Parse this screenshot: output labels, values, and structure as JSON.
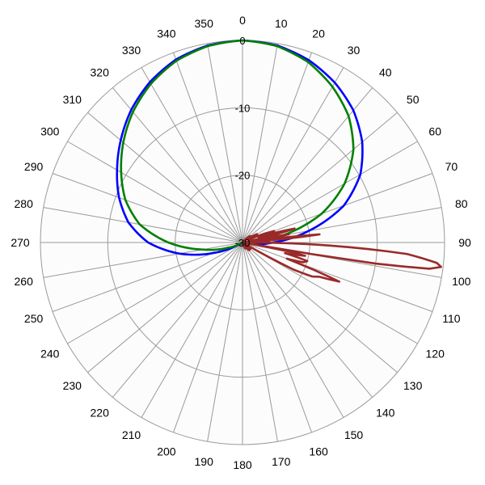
{
  "chart_data": {
    "type": "polar-line",
    "title": "",
    "angle_unit": "degrees",
    "angle_zero": "top",
    "angle_direction": "clockwise",
    "angle_ticks": [
      0,
      10,
      20,
      30,
      40,
      50,
      60,
      70,
      80,
      90,
      100,
      110,
      120,
      130,
      140,
      150,
      160,
      170,
      180,
      190,
      200,
      210,
      220,
      230,
      240,
      250,
      260,
      270,
      280,
      290,
      300,
      310,
      320,
      330,
      340,
      350
    ],
    "angle_tick_labels": [
      "0",
      "10",
      "20",
      "30",
      "40",
      "50",
      "60",
      "70",
      "80",
      "90",
      "100",
      "110",
      "120",
      "130",
      "140",
      "150",
      "160",
      "170",
      "180",
      "190",
      "200",
      "210",
      "220",
      "230",
      "240",
      "250",
      "260",
      "270",
      "280",
      "290",
      "300",
      "310",
      "320",
      "330",
      "340",
      "350"
    ],
    "radial_range": [
      -30,
      0
    ],
    "radial_ticks": [
      0,
      -10,
      -20,
      -30
    ],
    "radial_tick_labels": [
      "0",
      "-10",
      "-20",
      "-30"
    ],
    "grid": true,
    "colors": {
      "grid": "#9a9a9a",
      "background": "#fcfcfc"
    },
    "series": [
      {
        "color": "#0000ff",
        "angles": [
          0,
          10,
          20,
          30,
          40,
          50,
          60,
          70,
          80,
          90,
          100,
          110,
          120,
          150,
          180,
          210,
          240,
          250,
          260,
          270,
          280,
          290,
          300,
          310,
          320,
          330,
          340,
          350,
          360
        ],
        "values": [
          0,
          -0.3,
          -1.2,
          -2.6,
          -4.4,
          -6.8,
          -9.8,
          -14,
          -20,
          -25.5,
          -28.8,
          -29.6,
          -30,
          -30,
          -30,
          -30,
          -29.5,
          -25.5,
          -20.5,
          -16,
          -12.8,
          -10.5,
          -8.5,
          -6.4,
          -4.3,
          -2.5,
          -1.1,
          -0.3,
          0
        ]
      },
      {
        "color": "#008000",
        "angles": [
          0,
          10,
          20,
          30,
          40,
          50,
          60,
          70,
          80,
          90,
          100,
          110,
          120,
          150,
          180,
          210,
          240,
          250,
          260,
          270,
          280,
          290,
          300,
          310,
          320,
          330,
          340,
          350,
          360
        ],
        "values": [
          0,
          -0.4,
          -1.5,
          -3.3,
          -5.5,
          -8.5,
          -12.5,
          -17.5,
          -24,
          -28.3,
          -29.5,
          -30,
          -30,
          -30,
          -30,
          -30,
          -29.7,
          -27.8,
          -24,
          -19,
          -14.5,
          -11.5,
          -9.2,
          -6.9,
          -4.7,
          -2.8,
          -1.3,
          -0.4,
          0
        ]
      },
      {
        "color": "#9a2a2a",
        "angles": [
          0,
          30,
          40,
          45,
          50,
          55,
          60,
          65,
          70,
          72,
          75,
          78,
          80,
          82,
          84,
          86,
          88,
          90,
          92,
          94,
          96,
          97,
          98,
          99,
          100,
          101,
          102,
          104,
          106,
          108,
          110,
          112,
          114,
          116,
          118,
          120,
          130,
          135,
          140,
          145,
          150,
          155,
          160,
          170,
          180,
          270,
          280,
          300,
          330,
          360
        ],
        "values": [
          -30,
          -30,
          -29.7,
          -29,
          -28.5,
          -29,
          -27.5,
          -29,
          -25,
          -27.5,
          -22,
          -29,
          -23,
          -29.5,
          -18.5,
          -28.5,
          -26,
          -28.5,
          -17,
          -5.5,
          -1,
          -0.3,
          -2,
          -10,
          -29.5,
          -22.5,
          -20.5,
          -23.5,
          -20,
          -20.5,
          -23,
          -14.5,
          -17.5,
          -18.5,
          -21.5,
          -29.5,
          -28.5,
          -28.5,
          -28.5,
          -29.5,
          -29.5,
          -29,
          -29.5,
          -30,
          -30,
          -30,
          -30,
          -30,
          -30,
          -30
        ]
      }
    ]
  }
}
